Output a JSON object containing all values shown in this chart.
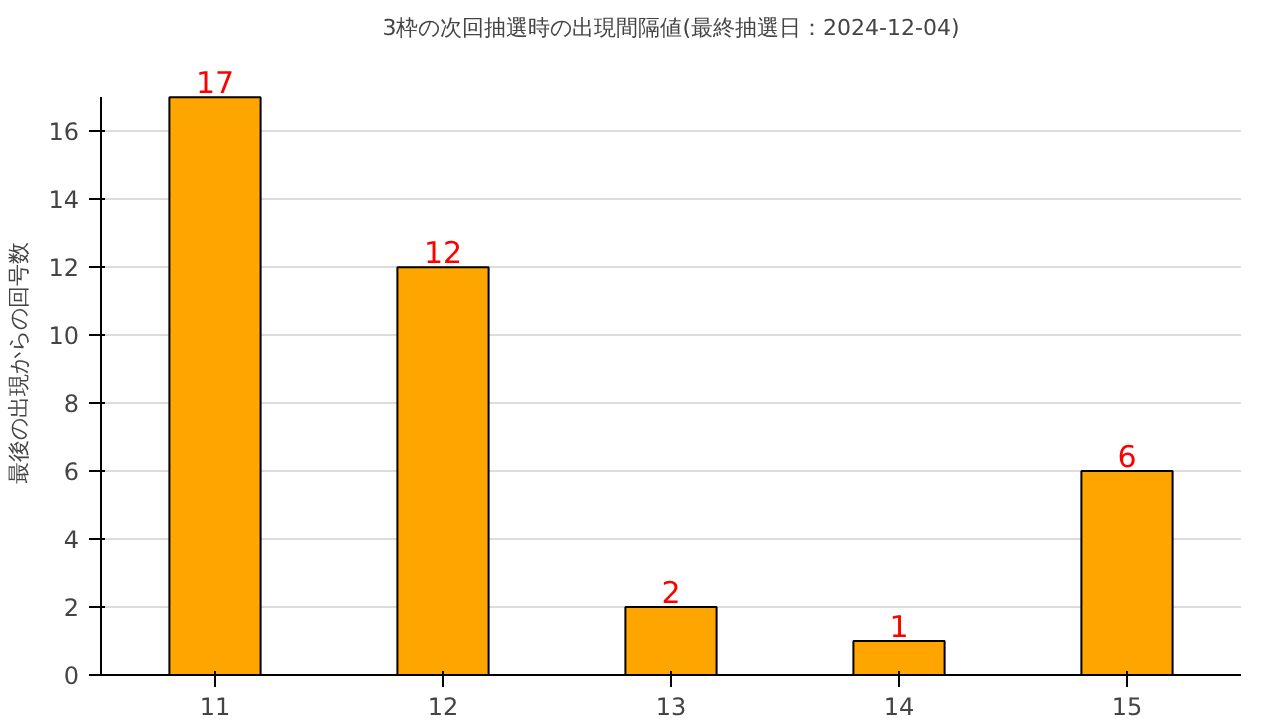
{
  "chart_data": {
    "type": "bar",
    "title": "3枠の次回抽選時の出現間隔値(最終抽選日：2024-12-04)",
    "ylabel": "最後の出現からの回号数",
    "categories": [
      "11",
      "12",
      "13",
      "14",
      "15"
    ],
    "values": [
      17,
      12,
      2,
      1,
      6
    ],
    "color": "#ffa500",
    "ylim": [
      0,
      17
    ],
    "yticks": [
      0,
      2,
      4,
      6,
      8,
      10,
      12,
      14,
      16
    ],
    "grid": "y",
    "data_labels": true
  }
}
